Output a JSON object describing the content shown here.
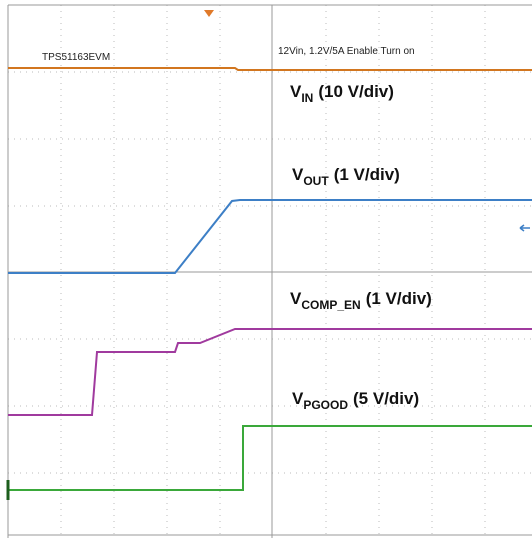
{
  "header": {
    "device": "TPS51163EVM",
    "title": "12Vin, 1.2V/5A Enable Turn on"
  },
  "traces": [
    {
      "symbol": "V",
      "subscript": "IN",
      "scale": "(10 V/div)"
    },
    {
      "symbol": "V",
      "subscript": "OUT",
      "scale": "(1 V/div)"
    },
    {
      "symbol": "V",
      "subscript": "COMP_EN",
      "scale": "(1 V/div)"
    },
    {
      "symbol": "V",
      "subscript": "PGOOD",
      "scale": "(5 V/div)"
    }
  ]
}
